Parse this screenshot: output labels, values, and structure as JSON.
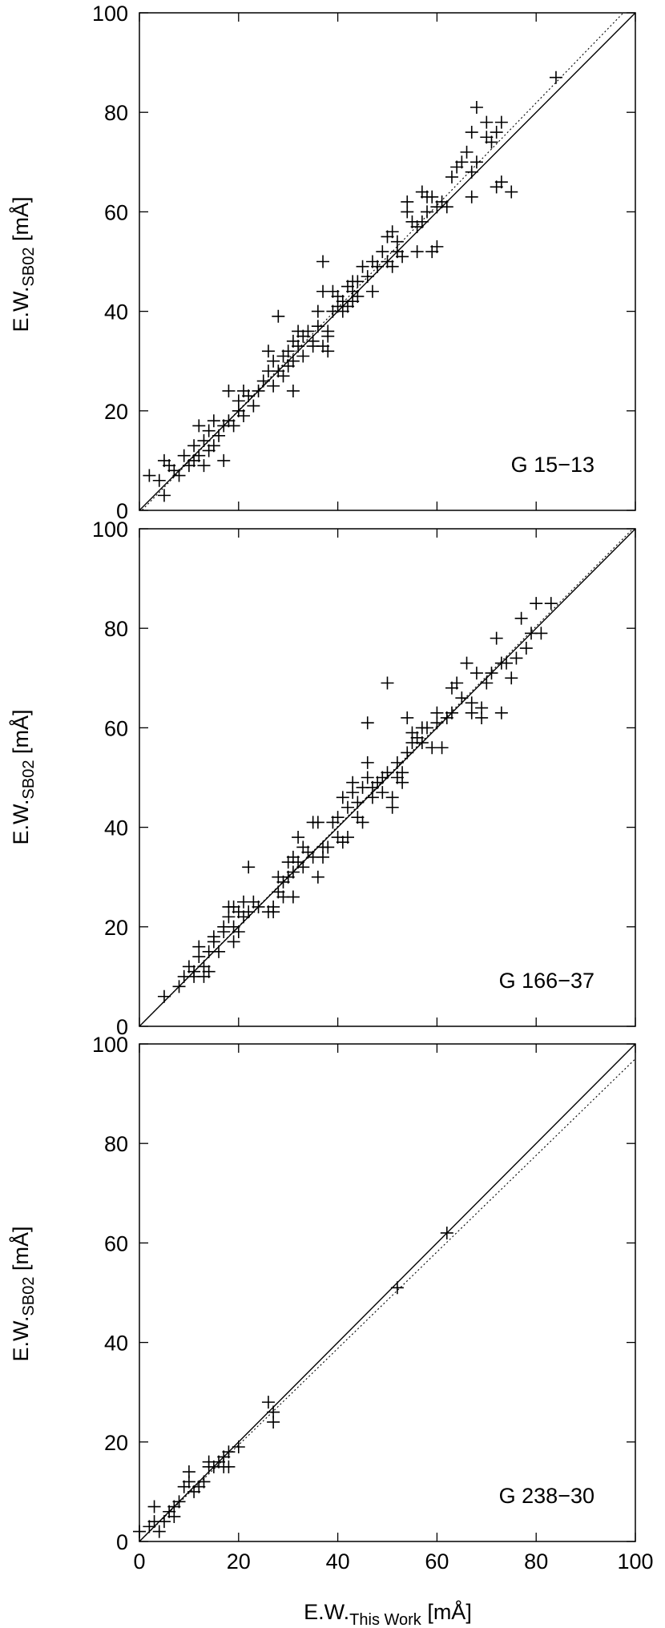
{
  "figure": {
    "ylabel_main": "E.W.",
    "ylabel_sub": "SB02",
    "ylabel_unit": " [mÅ]",
    "xlabel_main": "E.W.",
    "xlabel_sub": "This Work",
    "xlabel_unit": " [mÅ]"
  },
  "chart_data": [
    {
      "type": "scatter",
      "label": "G 15−13",
      "xlim": [
        0,
        100
      ],
      "ylim": [
        0,
        100
      ],
      "xticks": [
        0,
        20,
        40,
        60,
        80,
        100
      ],
      "yticks": [
        0,
        20,
        40,
        60,
        80,
        100
      ],
      "show_xtick_labels": false,
      "marker": "plus",
      "lines": [
        {
          "style": "solid",
          "slope": 1.0,
          "intercept": 0
        },
        {
          "style": "dotted",
          "slope": 1.03,
          "intercept": -0.5
        }
      ],
      "points": [
        [
          2,
          7
        ],
        [
          4,
          6
        ],
        [
          5,
          10
        ],
        [
          5,
          3
        ],
        [
          6,
          9
        ],
        [
          7,
          8
        ],
        [
          8,
          7
        ],
        [
          9,
          11
        ],
        [
          10,
          9
        ],
        [
          11,
          10
        ],
        [
          11,
          13
        ],
        [
          12,
          11
        ],
        [
          12,
          17
        ],
        [
          13,
          9
        ],
        [
          13,
          14
        ],
        [
          14,
          12
        ],
        [
          14,
          16
        ],
        [
          15,
          13
        ],
        [
          15,
          18
        ],
        [
          16,
          15
        ],
        [
          17,
          17
        ],
        [
          17,
          10
        ],
        [
          18,
          18
        ],
        [
          18,
          24
        ],
        [
          19,
          17
        ],
        [
          20,
          20
        ],
        [
          20,
          22
        ],
        [
          21,
          19
        ],
        [
          21,
          24
        ],
        [
          22,
          23
        ],
        [
          23,
          21
        ],
        [
          24,
          24
        ],
        [
          25,
          26
        ],
        [
          26,
          28
        ],
        [
          26,
          32
        ],
        [
          27,
          25
        ],
        [
          27,
          30
        ],
        [
          28,
          28
        ],
        [
          28,
          39
        ],
        [
          29,
          27
        ],
        [
          29,
          31
        ],
        [
          30,
          32
        ],
        [
          30,
          29
        ],
        [
          31,
          34
        ],
        [
          31,
          30
        ],
        [
          31,
          24
        ],
        [
          32,
          33
        ],
        [
          32,
          36
        ],
        [
          33,
          31
        ],
        [
          33,
          35
        ],
        [
          34,
          36
        ],
        [
          35,
          34
        ],
        [
          35,
          33
        ],
        [
          36,
          37
        ],
        [
          36,
          40
        ],
        [
          37,
          44
        ],
        [
          37,
          33
        ],
        [
          37,
          50
        ],
        [
          38,
          36
        ],
        [
          38,
          35
        ],
        [
          38,
          32
        ],
        [
          39,
          40
        ],
        [
          39,
          44
        ],
        [
          40,
          43
        ],
        [
          40,
          41
        ],
        [
          41,
          42
        ],
        [
          41,
          40
        ],
        [
          42,
          45
        ],
        [
          42,
          41
        ],
        [
          43,
          46
        ],
        [
          43,
          44
        ],
        [
          43,
          42
        ],
        [
          44,
          43
        ],
        [
          44,
          46
        ],
        [
          45,
          49
        ],
        [
          46,
          47
        ],
        [
          47,
          50
        ],
        [
          47,
          44
        ],
        [
          48,
          49
        ],
        [
          49,
          52
        ],
        [
          50,
          50
        ],
        [
          50,
          55
        ],
        [
          51,
          56
        ],
        [
          51,
          49
        ],
        [
          52,
          54
        ],
        [
          52,
          52
        ],
        [
          53,
          51
        ],
        [
          54,
          60
        ],
        [
          54,
          62
        ],
        [
          55,
          58
        ],
        [
          56,
          52
        ],
        [
          56,
          57
        ],
        [
          57,
          64
        ],
        [
          57,
          58
        ],
        [
          58,
          60
        ],
        [
          58,
          63
        ],
        [
          59,
          52
        ],
        [
          59,
          63
        ],
        [
          60,
          53
        ],
        [
          60,
          61
        ],
        [
          61,
          62
        ],
        [
          62,
          61
        ],
        [
          63,
          67
        ],
        [
          64,
          69
        ],
        [
          65,
          70
        ],
        [
          66,
          72
        ],
        [
          67,
          68
        ],
        [
          67,
          76
        ],
        [
          67,
          63
        ],
        [
          68,
          70
        ],
        [
          68,
          81
        ],
        [
          70,
          75
        ],
        [
          70,
          78
        ],
        [
          71,
          74
        ],
        [
          72,
          76
        ],
        [
          72,
          65
        ],
        [
          73,
          78
        ],
        [
          73,
          66
        ],
        [
          75,
          64
        ],
        [
          84,
          87
        ]
      ]
    },
    {
      "type": "scatter",
      "label": "G 166−37",
      "xlim": [
        0,
        100
      ],
      "ylim": [
        0,
        100
      ],
      "xticks": [
        0,
        20,
        40,
        60,
        80,
        100
      ],
      "yticks": [
        0,
        20,
        40,
        60,
        80,
        100
      ],
      "show_xtick_labels": false,
      "marker": "plus",
      "lines": [
        {
          "style": "solid",
          "slope": 1.0,
          "intercept": 0
        },
        {
          "style": "dotted",
          "slope": 1.005,
          "intercept": 0
        }
      ],
      "points": [
        [
          5,
          6
        ],
        [
          8,
          8
        ],
        [
          9,
          10
        ],
        [
          10,
          12
        ],
        [
          11,
          10
        ],
        [
          11,
          11
        ],
        [
          12,
          14
        ],
        [
          12,
          16
        ],
        [
          13,
          10
        ],
        [
          13,
          12
        ],
        [
          14,
          11
        ],
        [
          14,
          15
        ],
        [
          15,
          18
        ],
        [
          15,
          17
        ],
        [
          16,
          15
        ],
        [
          17,
          20
        ],
        [
          17,
          19
        ],
        [
          18,
          24
        ],
        [
          18,
          22
        ],
        [
          19,
          17
        ],
        [
          19,
          20
        ],
        [
          19,
          24
        ],
        [
          20,
          19
        ],
        [
          20,
          23
        ],
        [
          21,
          25
        ],
        [
          21,
          22
        ],
        [
          22,
          32
        ],
        [
          22,
          23
        ],
        [
          23,
          25
        ],
        [
          24,
          24
        ],
        [
          26,
          23
        ],
        [
          27,
          23
        ],
        [
          27,
          24
        ],
        [
          28,
          27
        ],
        [
          28,
          30
        ],
        [
          29,
          26
        ],
        [
          29,
          29
        ],
        [
          30,
          30
        ],
        [
          30,
          33
        ],
        [
          31,
          26
        ],
        [
          31,
          31
        ],
        [
          31,
          34
        ],
        [
          32,
          38
        ],
        [
          32,
          33
        ],
        [
          33,
          32
        ],
        [
          33,
          36
        ],
        [
          34,
          35
        ],
        [
          35,
          34
        ],
        [
          35,
          41
        ],
        [
          36,
          30
        ],
        [
          36,
          41
        ],
        [
          37,
          36
        ],
        [
          37,
          34
        ],
        [
          38,
          36
        ],
        [
          39,
          41
        ],
        [
          40,
          42
        ],
        [
          40,
          38
        ],
        [
          41,
          37
        ],
        [
          41,
          46
        ],
        [
          42,
          38
        ],
        [
          42,
          44
        ],
        [
          43,
          47
        ],
        [
          43,
          49
        ],
        [
          44,
          42
        ],
        [
          44,
          45
        ],
        [
          45,
          48
        ],
        [
          45,
          41
        ],
        [
          46,
          61
        ],
        [
          46,
          50
        ],
        [
          46,
          53
        ],
        [
          47,
          48
        ],
        [
          47,
          46
        ],
        [
          48,
          49
        ],
        [
          49,
          47
        ],
        [
          49,
          50
        ],
        [
          50,
          51
        ],
        [
          50,
          69
        ],
        [
          51,
          46
        ],
        [
          51,
          44
        ],
        [
          52,
          53
        ],
        [
          52,
          50
        ],
        [
          53,
          51
        ],
        [
          53,
          49
        ],
        [
          54,
          55
        ],
        [
          54,
          62
        ],
        [
          55,
          57
        ],
        [
          55,
          59
        ],
        [
          56,
          58
        ],
        [
          57,
          57
        ],
        [
          57,
          60
        ],
        [
          58,
          60
        ],
        [
          59,
          56
        ],
        [
          60,
          63
        ],
        [
          60,
          61
        ],
        [
          61,
          56
        ],
        [
          62,
          62
        ],
        [
          63,
          63
        ],
        [
          63,
          68
        ],
        [
          64,
          69
        ],
        [
          65,
          66
        ],
        [
          66,
          73
        ],
        [
          67,
          65
        ],
        [
          67,
          63
        ],
        [
          68,
          71
        ],
        [
          69,
          64
        ],
        [
          69,
          62
        ],
        [
          70,
          69
        ],
        [
          71,
          71
        ],
        [
          72,
          78
        ],
        [
          73,
          73
        ],
        [
          73,
          63
        ],
        [
          74,
          73
        ],
        [
          75,
          70
        ],
        [
          76,
          74
        ],
        [
          77,
          82
        ],
        [
          78,
          76
        ],
        [
          79,
          79
        ],
        [
          80,
          85
        ],
        [
          81,
          79
        ],
        [
          83,
          85
        ]
      ]
    },
    {
      "type": "scatter",
      "label": "G 238−30",
      "xlim": [
        0,
        100
      ],
      "ylim": [
        0,
        100
      ],
      "xticks": [
        0,
        20,
        40,
        60,
        80,
        100
      ],
      "yticks": [
        0,
        20,
        40,
        60,
        80,
        100
      ],
      "show_xtick_labels": true,
      "marker": "plus",
      "lines": [
        {
          "style": "solid",
          "slope": 1.0,
          "intercept": 0
        },
        {
          "style": "dotted",
          "slope": 0.97,
          "intercept": 0
        }
      ],
      "points": [
        [
          0,
          2
        ],
        [
          2,
          3
        ],
        [
          3,
          4
        ],
        [
          3,
          7
        ],
        [
          4,
          2
        ],
        [
          5,
          4
        ],
        [
          6,
          6
        ],
        [
          7,
          7
        ],
        [
          7,
          5
        ],
        [
          8,
          8
        ],
        [
          9,
          11
        ],
        [
          10,
          12
        ],
        [
          10,
          14
        ],
        [
          11,
          10
        ],
        [
          12,
          11
        ],
        [
          13,
          12
        ],
        [
          14,
          15
        ],
        [
          14,
          16
        ],
        [
          15,
          15
        ],
        [
          16,
          16
        ],
        [
          17,
          17
        ],
        [
          17,
          15
        ],
        [
          18,
          18
        ],
        [
          18,
          15
        ],
        [
          20,
          19
        ],
        [
          26,
          28
        ],
        [
          27,
          24
        ],
        [
          27,
          26
        ],
        [
          52,
          51
        ],
        [
          62,
          62
        ]
      ]
    }
  ]
}
